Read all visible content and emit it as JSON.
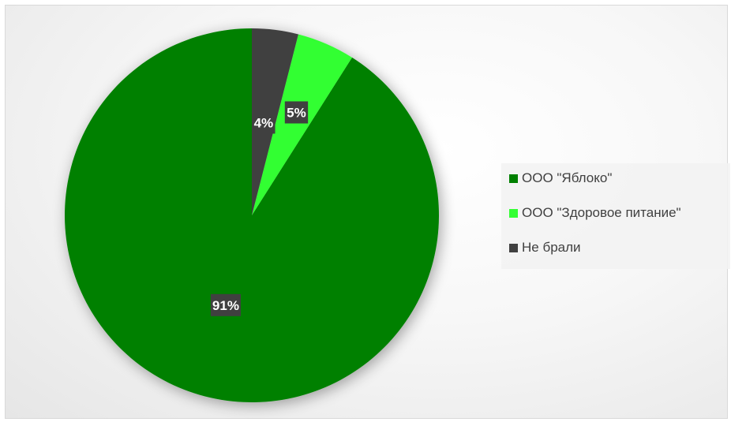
{
  "chart_data": {
    "type": "pie",
    "title": "",
    "start_angle_deg": 0,
    "direction": "counterclockwise",
    "slices": [
      {
        "label": "ООО \"Яблоко\"",
        "value": 91,
        "data_label": "91%",
        "color": "#008000"
      },
      {
        "label": "ООО \"Здоровое питание\"",
        "value": 5,
        "data_label": "5%",
        "color": "#33ff33"
      },
      {
        "label": "Не брали",
        "value": 4,
        "data_label": "4%",
        "color": "#404040"
      }
    ],
    "legend_position": "right",
    "data_label_style": {
      "background": "#404040",
      "text_color": "#ffffff"
    }
  }
}
